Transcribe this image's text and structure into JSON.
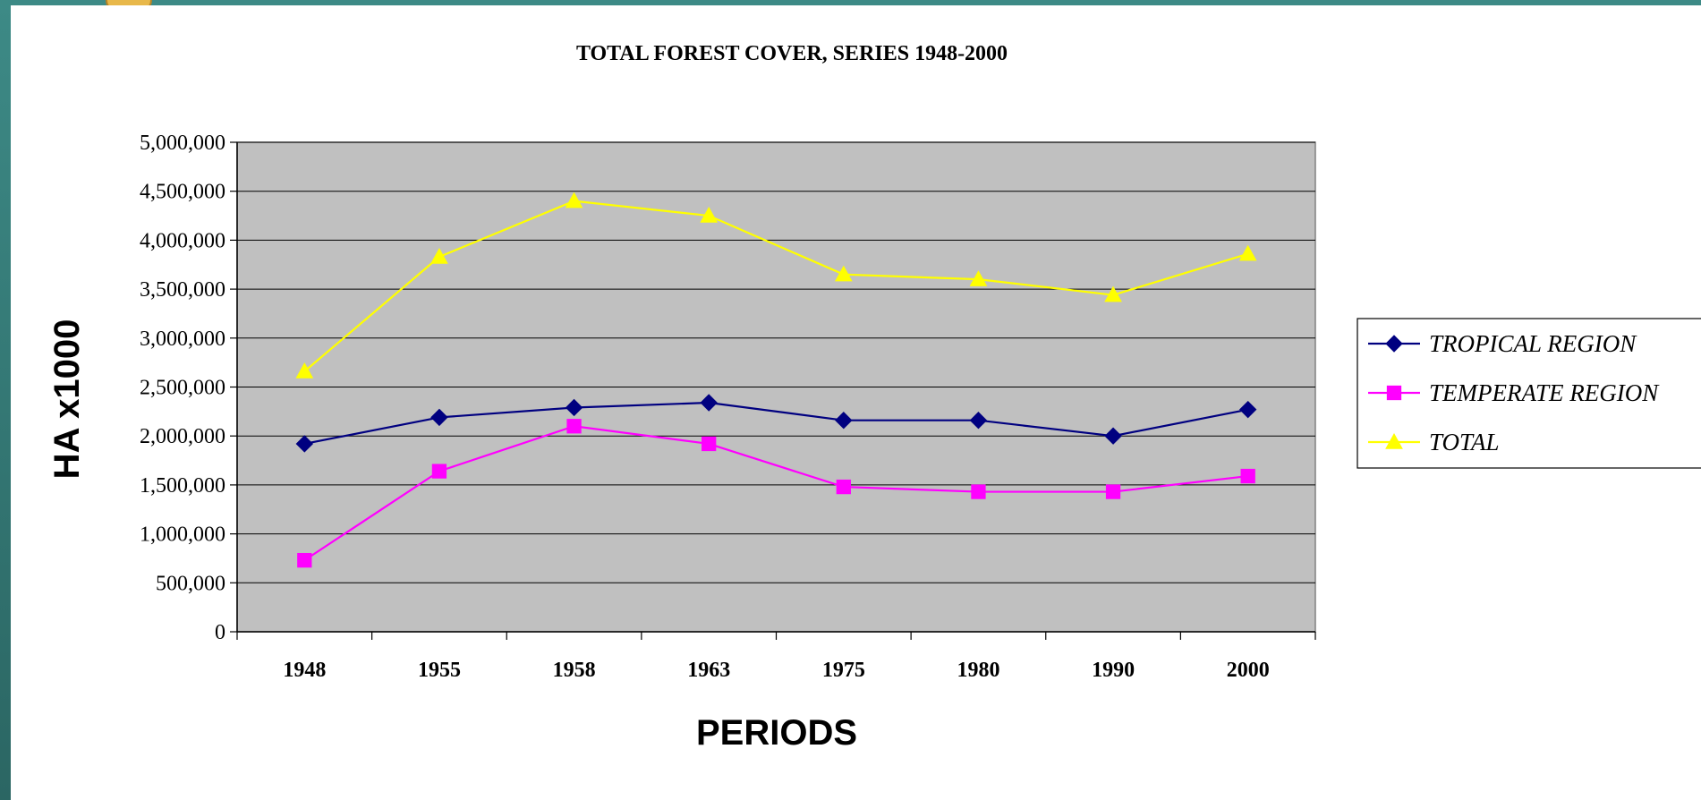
{
  "chart_data": {
    "type": "line",
    "title": "TOTAL FOREST COVER, SERIES 1948-2000",
    "xlabel": "PERIODS",
    "ylabel": "HA x1000",
    "categories": [
      "1948",
      "1955",
      "1958",
      "1963",
      "1975",
      "1980",
      "1990",
      "2000"
    ],
    "ylim": [
      0,
      5000000
    ],
    "yticks": [
      0,
      500000,
      1000000,
      1500000,
      2000000,
      2500000,
      3000000,
      3500000,
      4000000,
      4500000,
      5000000
    ],
    "ytick_labels": [
      "0",
      "500,000",
      "1,000,000",
      "1,500,000",
      "2,000,000",
      "2,500,000",
      "3,000,000",
      "3,500,000",
      "4,000,000",
      "4,500,000",
      "5,000,000"
    ],
    "grid": true,
    "plot_background": "#c0c0c0",
    "legend_position": "right",
    "series": [
      {
        "name": "TROPICAL REGION",
        "color": "#000080",
        "marker": "diamond",
        "values": [
          1920000,
          2190000,
          2290000,
          2340000,
          2160000,
          2160000,
          2000000,
          2270000
        ]
      },
      {
        "name": "TEMPERATE REGION",
        "color": "#ff00ff",
        "marker": "square",
        "values": [
          730000,
          1640000,
          2100000,
          1920000,
          1480000,
          1430000,
          1430000,
          1590000
        ]
      },
      {
        "name": "TOTAL",
        "color": "#ffff00",
        "marker": "triangle",
        "values": [
          2660000,
          3830000,
          4400000,
          4250000,
          3650000,
          3600000,
          3440000,
          3860000
        ]
      }
    ]
  }
}
